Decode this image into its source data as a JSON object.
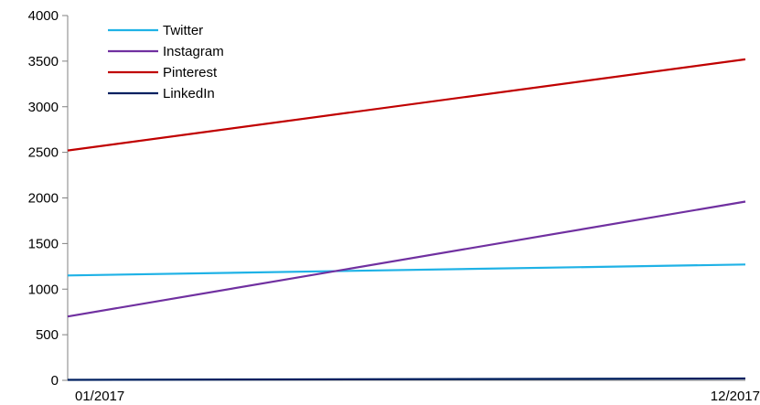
{
  "chart_data": {
    "type": "line",
    "title": "",
    "xlabel": "",
    "ylabel": "",
    "x": [
      "01/2017",
      "12/2017"
    ],
    "ylim": [
      0,
      4000
    ],
    "yticks": [
      0,
      500,
      1000,
      1500,
      2000,
      2500,
      3000,
      3500,
      4000
    ],
    "grid": false,
    "legend_position": "top-left",
    "series": [
      {
        "name": "Twitter",
        "color": "#1fb2e6",
        "values": [
          1150,
          1270
        ]
      },
      {
        "name": "Instagram",
        "color": "#7030a0",
        "values": [
          700,
          1960
        ]
      },
      {
        "name": "Pinterest",
        "color": "#c00000",
        "values": [
          2520,
          3520
        ]
      },
      {
        "name": "LinkedIn",
        "color": "#002060",
        "values": [
          5,
          20
        ]
      }
    ]
  }
}
